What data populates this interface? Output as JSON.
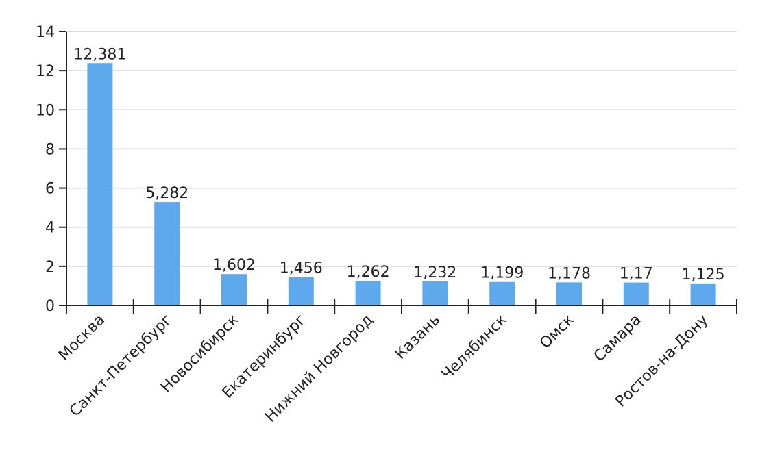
{
  "chart_data": {
    "type": "bar",
    "categories": [
      "Москва",
      "Санкт-Петербург",
      "Новосибирск",
      "Екатеринбург",
      "Нижний Новгород",
      "Казань",
      "Челябинск",
      "Омск",
      "Самара",
      "Ростов-на-Дону"
    ],
    "values": [
      12.381,
      5.282,
      1.602,
      1.456,
      1.262,
      1.232,
      1.199,
      1.178,
      1.17,
      1.125
    ],
    "value_labels": [
      "12,381",
      "5,282",
      "1,602",
      "1,456",
      "1,262",
      "1,232",
      "1,199",
      "1,178",
      "1,17",
      "1,125"
    ],
    "color": "#5ea8ee",
    "ylim": [
      0,
      14
    ],
    "yticks": [
      0,
      2,
      4,
      6,
      8,
      10,
      12,
      14
    ],
    "grid": true
  }
}
